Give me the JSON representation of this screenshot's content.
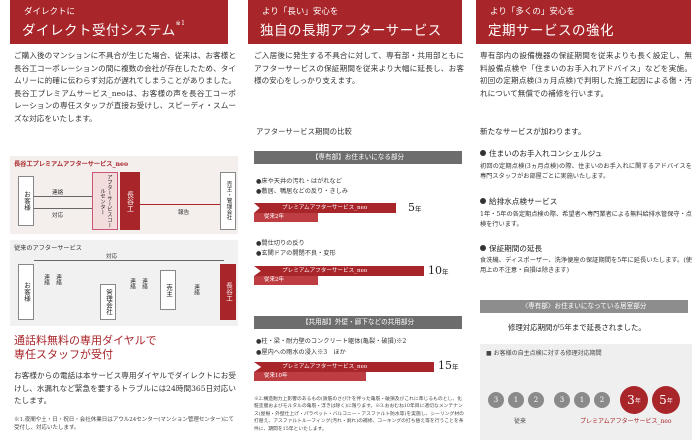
{
  "col1": {
    "header_sub": "ダイレクトに",
    "header_title": "ダイレクト受付システム",
    "header_note": "※1",
    "intro": "ご購入後のマンションに不具合が生じた場合、従来は、お客様と長谷工コーポレーションの間に複数の会社が存在したため、タイムリーに的確に伝わらず対応が遅れてしまうことがありました。長谷工プレミアムサービス_neoは、お客様の声を長谷工コーポレーションの専任スタッフが直接お受けし、スピーディ・スムーズな対応をいたします。",
    "diagram_new": {
      "caption": "長谷工プレミアムアフターサービス_neo",
      "customer": "お客様",
      "center": "アフターサービスコールセンター",
      "contact": "連絡",
      "respond": "対応",
      "haseko": "長谷工",
      "report": "報告",
      "seller": "売主・管理会社"
    },
    "diagram_old": {
      "caption": "従来のアフターサービス",
      "respond": "対応",
      "customer": "お客様",
      "contact1": "連絡",
      "contact2": "連絡",
      "manager": "管理会社",
      "contact3": "連絡",
      "contact4": "連絡",
      "seller": "売主",
      "contact5": "連絡",
      "haseko": "長谷工"
    },
    "sub_heading_1": "通話料無料の専用ダイヤルで",
    "sub_heading_2": "専任スタッフが受付",
    "call_text": "お客様からの電話は本サービス専用ダイヤルでダイレクトにお受けし、水漏れなど緊急を要するトラブルには24時間365日対応いたします。",
    "footnote": "※1.夜間や土・日・祝日・会社休業日はアウル24センター(マンション管理センター)にて受付し、対応いたします。"
  },
  "col2": {
    "header_sub": "より「長い」安心を",
    "header_title": "独自の長期アフターサービス",
    "intro": "ご入居後に発生する不具合に対して、専有部・共用部ともにアフターサービスの保証期間を従来より大幅に延長し、お客様の安心をしっかり支えます。",
    "compare_title": "アフターサービス期間の比較",
    "sec1": "【専有部】お住まいになる部分",
    "g1_items": [
      "●床や天井の汚れ・はがれなど",
      "●敷居、鴨居などの反り・きしみ"
    ],
    "g1_old": "従来2年",
    "g1_new": "プレミアムアフターサービス_neo",
    "g1_years": "5",
    "g2_items": [
      "●間仕切りの反り",
      "●玄関ドアの開閉不良・変形"
    ],
    "g2_old": "従来2年",
    "g2_new": "プレミアムアフターサービス_neo",
    "g2_years": "10",
    "sec2": "【共用部】外壁・廊下などの共用部分",
    "g3_items": [
      "●柱・梁・耐力壁のコンクリート躯体(亀裂・破損)※2",
      "●屋内への雨水の浸入※3　ほか"
    ],
    "g3_old": "従来10年",
    "g3_new": "プレミアムアフターサービス_neo",
    "g3_years": "15",
    "years_unit": "年",
    "footnote": "※2.構造耐力上影響のあるもの(鉄筋のさび汁を伴った亀裂・破損及びこれに準じるものとし、化粧塗膜およびモルタルの亀裂・浮きは除く)に限ります。※3.おおむね10年目に適切なメンテナンス(屋根・外壁仕上げ・パラペット・バルコニー・アスファルト防水等)を実施し、シーリング材の打替え、アスファルトルーフィング(汚れ・剥れ)の補修、コーキングの打ち替え等を行うことを条件に、期間を15年といたします。"
  },
  "col3": {
    "header_sub": "より「多くの」安心を",
    "header_title": "定期サービスの強化",
    "intro": "専有部内の設備機器の保証期間を従来よりも長く設定し、無料設備点検や「住まいのお手入れアドバイス」などを実施。初回の定期点検(3ヵ月点検)で判明した施工起因による傷・汚れについて無償での補修を行います。",
    "new_title": "新たなサービスが加わります。",
    "items": [
      {
        "title": "住まいのお手入れコンシェルジュ",
        "text": "初回の定期点検(3ヵ月点検)の際、住まいのお手入れに関するアドバイスを専門スタッフがお部屋ごとに実施いたします。"
      },
      {
        "title": "給排水点検サービス",
        "text": "1年・5年の各定期点検の際、希望者へ専門業者による無料給排水管保守・点検を行います。"
      },
      {
        "title": "保証期間の延長",
        "text": "食洗機、ディスポーザー、洗浄便座の保証期間を5年に延長いたします。(使用上の不注意・自損は除きます)"
      }
    ],
    "band": "〈専有部〉お住まいになっている居室部分",
    "band_text": "修理対応期間が5年まで延長されました。",
    "box_title": "■ お客様の自主点検に対する修理対応期間",
    "old_label": "従来",
    "new_label": "プレミアムアフターサービス_neo",
    "circles": [
      {
        "n": "3",
        "u": "ヶ月"
      },
      {
        "n": "1",
        "u": "年"
      },
      {
        "n": "2",
        "u": "年"
      },
      {
        "n": "3",
        "u": "ヶ月"
      },
      {
        "n": "1",
        "u": "年"
      },
      {
        "n": "2",
        "u": "年"
      }
    ],
    "big": [
      {
        "n": "3",
        "u": "年"
      },
      {
        "n": "5",
        "u": "年"
      }
    ]
  },
  "colors": {
    "accent": "#a8252a",
    "gray": "#6d6d6d"
  }
}
